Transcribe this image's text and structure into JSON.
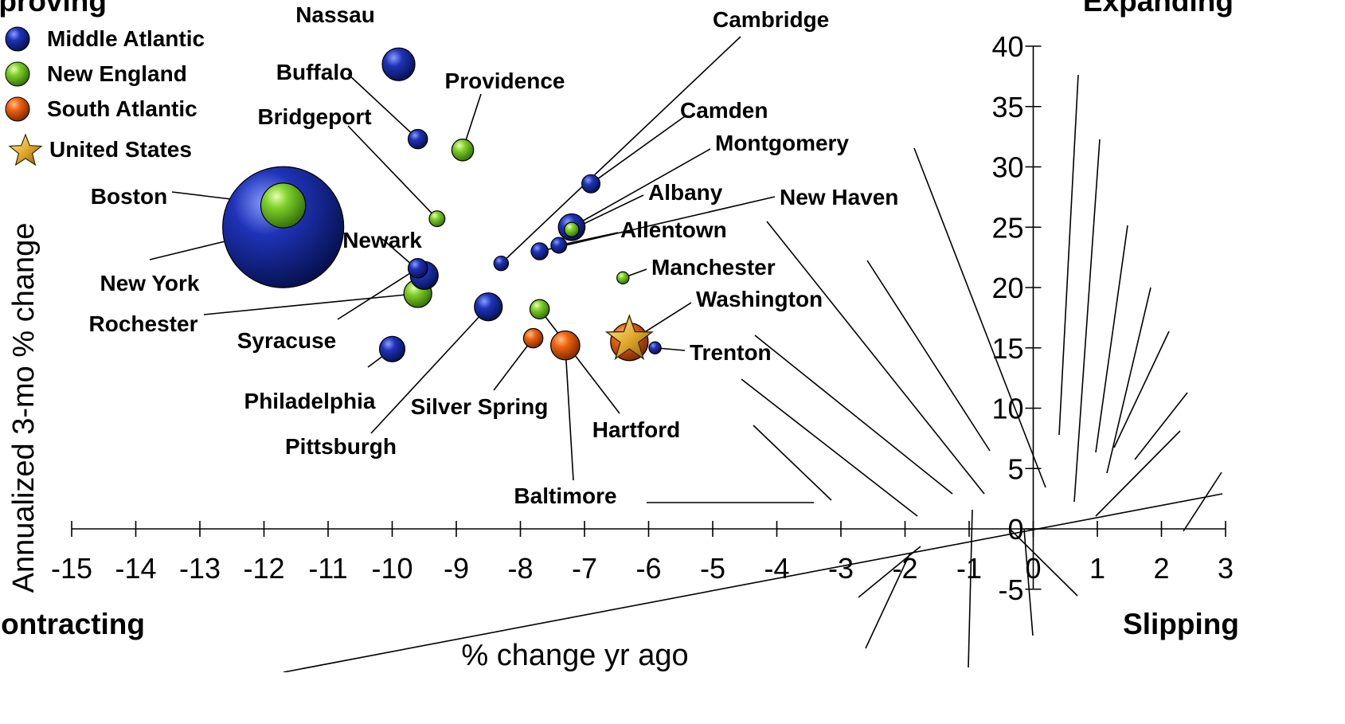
{
  "chart_data": {
    "type": "scatter",
    "title": "",
    "xlabel": "% change yr ago",
    "ylabel": "Annualized 3-mo % change",
    "xlim": [
      -15,
      3
    ],
    "ylim": [
      -5,
      40
    ],
    "x_ticks": [
      "-15",
      "-14",
      "-13",
      "-12",
      "-11",
      "-10",
      "-9",
      "-8",
      "-7",
      "-6",
      "-5",
      "-4",
      "-3",
      "-2",
      "-1",
      "0",
      "1",
      "2",
      "3"
    ],
    "y_ticks": [
      "-5",
      "0",
      "5",
      "10",
      "15",
      "20",
      "25",
      "30",
      "35",
      "40"
    ],
    "grid": false,
    "legend_position": "top-left",
    "quadrants": {
      "top_left": "Improving",
      "top_right": "Expanding",
      "bottom_left": "Contracting",
      "bottom_right": "Slipping"
    },
    "regions": [
      {
        "name": "Middle Atlantic",
        "color": "#1a2fa8"
      },
      {
        "name": "New England",
        "color": "#7dcf2a"
      },
      {
        "name": "South Atlantic",
        "color": "#ef6410"
      },
      {
        "name": "United States",
        "color": "#e3ad32"
      }
    ],
    "points": [
      {
        "name": "New York",
        "region": "Middle Atlantic",
        "x": -11.7,
        "y": 25.0,
        "size": 10.0
      },
      {
        "name": "Boston",
        "region": "New England",
        "x": -11.7,
        "y": 26.8,
        "size": 3.7
      },
      {
        "name": "Nassau",
        "region": "Middle Atlantic",
        "x": -9.9,
        "y": 38.5,
        "size": 2.7
      },
      {
        "name": "Buffalo",
        "region": "Middle Atlantic",
        "x": -9.6,
        "y": 32.3,
        "size": 1.6
      },
      {
        "name": "Providence",
        "region": "New England",
        "x": -8.9,
        "y": 31.4,
        "size": 1.8
      },
      {
        "name": "Bridgeport",
        "region": "New England",
        "x": -9.3,
        "y": 25.7,
        "size": 1.3
      },
      {
        "name": "Rochester",
        "region": "New England",
        "x": -9.6,
        "y": 19.5,
        "size": 2.3
      },
      {
        "name": "Newark",
        "region": "Middle Atlantic",
        "x": -9.5,
        "y": 21.0,
        "size": 2.3
      },
      {
        "name": "Syracuse",
        "region": "Middle Atlantic",
        "x": -9.6,
        "y": 21.6,
        "size": 1.6
      },
      {
        "name": "Philadelphia",
        "region": "Middle Atlantic",
        "x": -10.0,
        "y": 14.9,
        "size": 2.1
      },
      {
        "name": "Pittsburgh",
        "region": "Middle Atlantic",
        "x": -8.5,
        "y": 18.4,
        "size": 2.3
      },
      {
        "name": "Cambridge",
        "region": "Middle Atlantic",
        "x": -8.3,
        "y": 22.0,
        "size": 1.2
      },
      {
        "name": "Camden",
        "region": "Middle Atlantic",
        "x": -6.9,
        "y": 28.6,
        "size": 1.5
      },
      {
        "name": "Montgomery",
        "region": "Middle Atlantic",
        "x": -7.2,
        "y": 25.0,
        "size": 2.2
      },
      {
        "name": "Albany",
        "region": "New England",
        "x": -7.2,
        "y": 24.8,
        "size": 1.2
      },
      {
        "name": "New Haven",
        "region": "Middle Atlantic",
        "x": -7.7,
        "y": 23.0,
        "size": 1.4
      },
      {
        "name": "Allentown",
        "region": "Middle Atlantic",
        "x": -7.4,
        "y": 23.5,
        "size": 1.3
      },
      {
        "name": "Manchester",
        "region": "New England",
        "x": -6.4,
        "y": 20.8,
        "size": 1.0
      },
      {
        "name": "Hartford",
        "region": "New England",
        "x": -7.7,
        "y": 18.2,
        "size": 1.6
      },
      {
        "name": "Baltimore",
        "region": "South Atlantic",
        "x": -7.3,
        "y": 15.2,
        "size": 2.4
      },
      {
        "name": "Silver Spring",
        "region": "South Atlantic",
        "x": -7.8,
        "y": 15.8,
        "size": 1.6
      },
      {
        "name": "Washington",
        "region": "South Atlantic",
        "x": -6.3,
        "y": 15.5,
        "size": 3.1
      },
      {
        "name": "Trenton",
        "region": "Middle Atlantic",
        "x": -5.9,
        "y": 15.0,
        "size": 1.0
      },
      {
        "name": "United States",
        "region": "United States",
        "x": -6.3,
        "y": 15.7,
        "size": 0,
        "marker": "star"
      }
    ]
  }
}
